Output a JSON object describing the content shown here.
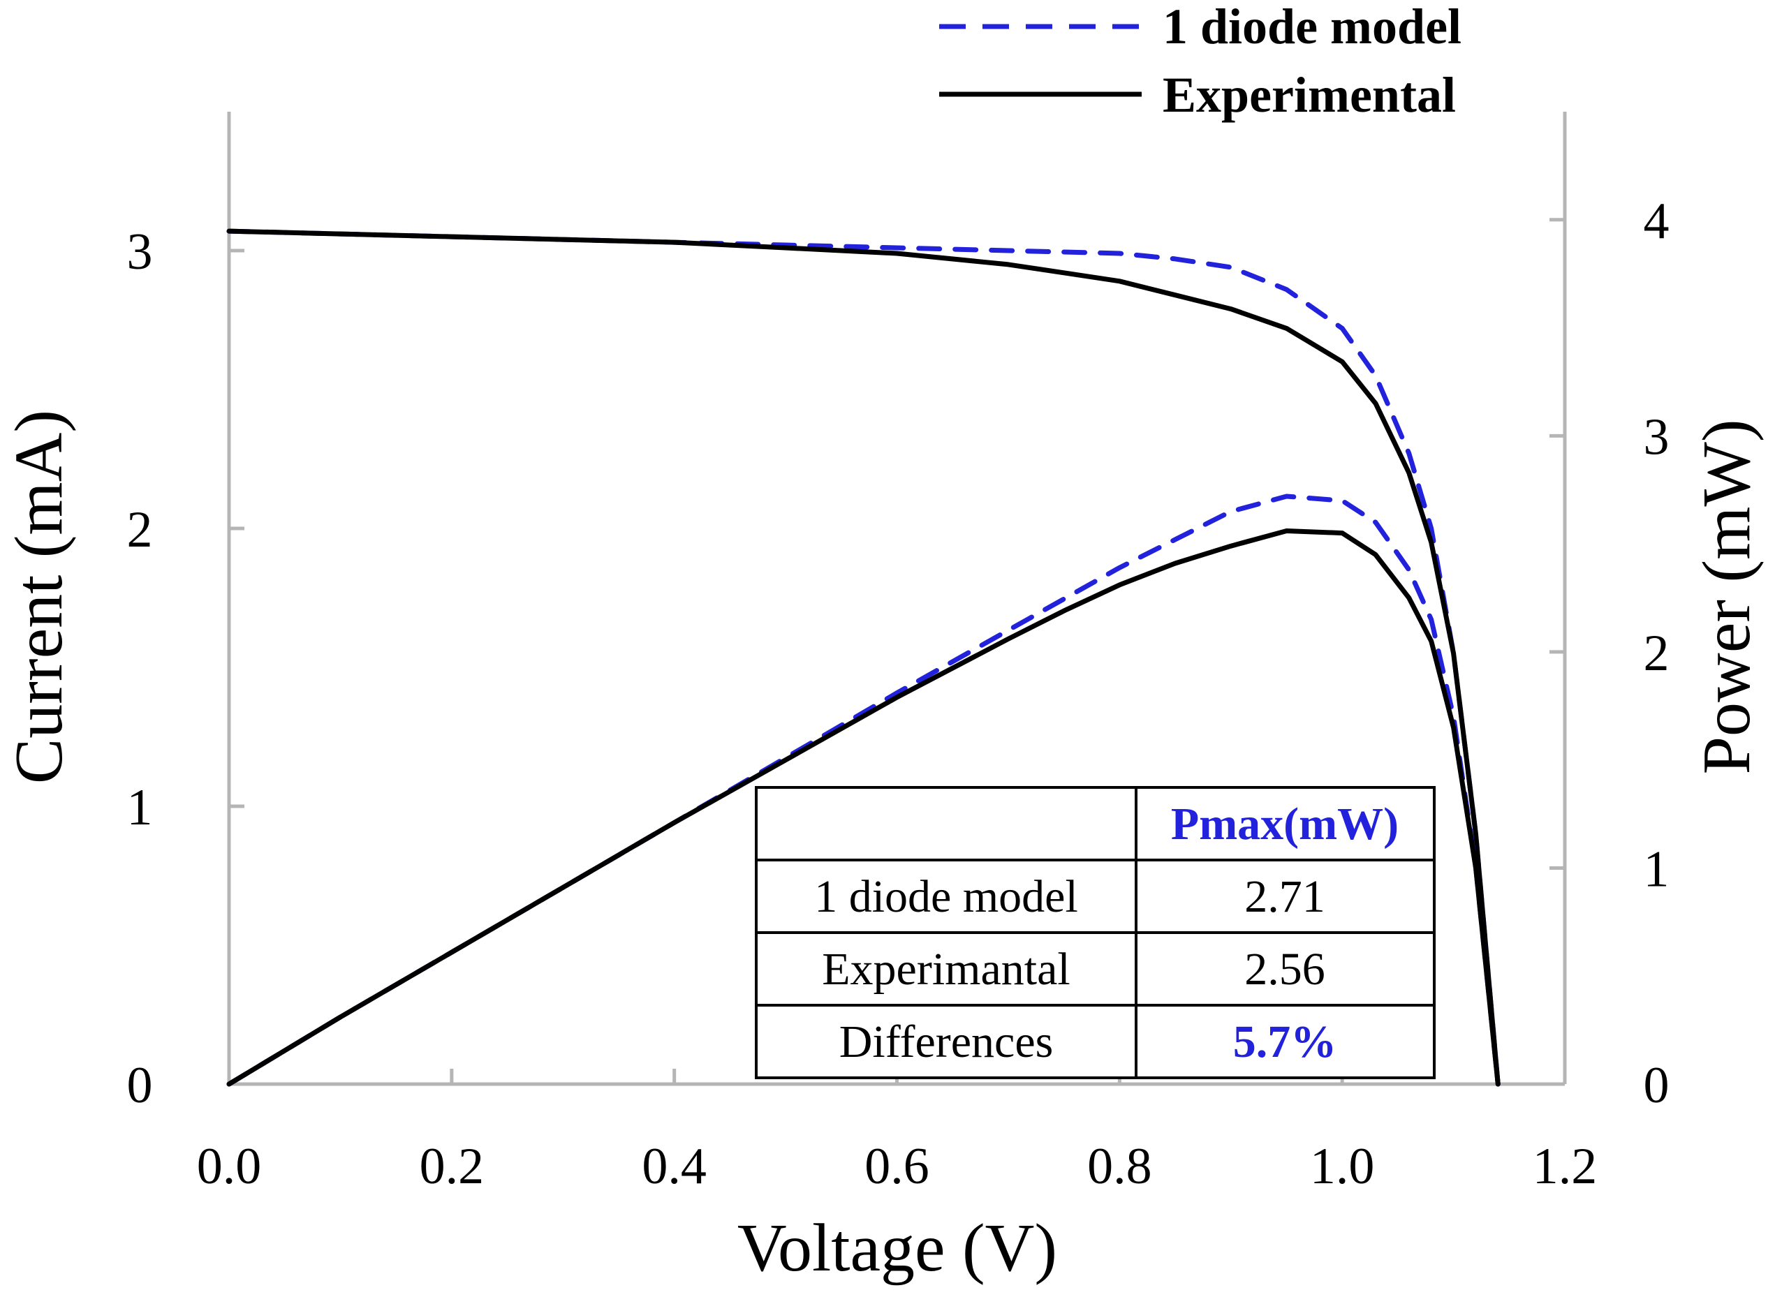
{
  "chart_data": {
    "type": "line",
    "title": "",
    "xlabel": "Voltage (V)",
    "ylabel_left": "Current (mA)",
    "ylabel_right": "Power (mW)",
    "xlim": [
      0,
      1.2
    ],
    "ylim_left": [
      0,
      3.5
    ],
    "ylim_right": [
      0,
      4.5
    ],
    "x_ticks": [
      "0.0",
      "0.2",
      "0.4",
      "0.6",
      "0.8",
      "1.0",
      "1.2"
    ],
    "y_left_ticks": [
      "0",
      "1",
      "2",
      "3"
    ],
    "y_right_ticks": [
      "0",
      "1",
      "2",
      "3",
      "4"
    ],
    "grid": false,
    "legend_position": "top-right",
    "legend": [
      {
        "label": "1 diode model",
        "style": "dashed",
        "color": "#2222dd"
      },
      {
        "label": "Experimental",
        "style": "solid",
        "color": "#000000"
      }
    ],
    "series": [
      {
        "name": "1 diode model",
        "kind": "current",
        "axis": "left",
        "style": "dashed",
        "color": "#2222dd",
        "x": [
          0,
          0.1,
          0.2,
          0.3,
          0.4,
          0.5,
          0.6,
          0.7,
          0.8,
          0.85,
          0.9,
          0.95,
          1.0,
          1.03,
          1.06,
          1.08,
          1.1,
          1.12,
          1.14
        ],
        "y": [
          3.07,
          3.06,
          3.05,
          3.04,
          3.03,
          3.02,
          3.01,
          3.0,
          2.99,
          2.97,
          2.94,
          2.86,
          2.72,
          2.55,
          2.27,
          2.0,
          1.55,
          0.9,
          0.0
        ]
      },
      {
        "name": "Experimental",
        "kind": "current",
        "axis": "left",
        "style": "solid",
        "color": "#000000",
        "x": [
          0,
          0.1,
          0.2,
          0.3,
          0.4,
          0.5,
          0.6,
          0.7,
          0.75,
          0.8,
          0.85,
          0.9,
          0.95,
          1.0,
          1.03,
          1.06,
          1.08,
          1.1,
          1.12,
          1.14
        ],
        "y": [
          3.07,
          3.06,
          3.05,
          3.04,
          3.03,
          3.01,
          2.99,
          2.95,
          2.92,
          2.89,
          2.84,
          2.79,
          2.72,
          2.6,
          2.45,
          2.2,
          1.95,
          1.55,
          0.9,
          0.0
        ]
      },
      {
        "name": "1 diode model",
        "kind": "power",
        "axis": "right",
        "style": "dashed",
        "color": "#2222dd",
        "x": [
          0,
          0.1,
          0.2,
          0.3,
          0.4,
          0.5,
          0.6,
          0.7,
          0.8,
          0.85,
          0.9,
          0.95,
          1.0,
          1.03,
          1.06,
          1.08,
          1.1,
          1.12,
          1.14
        ],
        "y": [
          0,
          0.31,
          0.61,
          0.91,
          1.21,
          1.51,
          1.81,
          2.1,
          2.39,
          2.52,
          2.65,
          2.72,
          2.7,
          2.6,
          2.38,
          2.15,
          1.7,
          1.0,
          0.0
        ]
      },
      {
        "name": "Experimental",
        "kind": "power",
        "axis": "right",
        "style": "solid",
        "color": "#000000",
        "x": [
          0,
          0.1,
          0.2,
          0.3,
          0.4,
          0.5,
          0.6,
          0.7,
          0.75,
          0.8,
          0.85,
          0.9,
          0.95,
          1.0,
          1.03,
          1.06,
          1.08,
          1.1,
          1.12,
          1.14
        ],
        "y": [
          0,
          0.31,
          0.61,
          0.91,
          1.21,
          1.5,
          1.79,
          2.06,
          2.19,
          2.31,
          2.41,
          2.49,
          2.56,
          2.55,
          2.45,
          2.25,
          2.05,
          1.65,
          1.0,
          0.0
        ]
      }
    ],
    "table": {
      "header": [
        "",
        "Pmax(mW)"
      ],
      "rows": [
        [
          "1 diode model",
          "2.71"
        ],
        [
          "Experimantal",
          "2.56"
        ],
        [
          "Differences",
          "5.7%"
        ]
      ],
      "accent_color": "#2222dd"
    }
  }
}
